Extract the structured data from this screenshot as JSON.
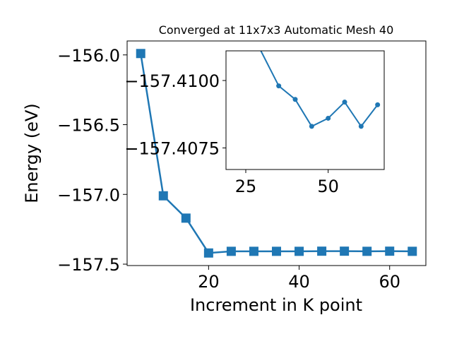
{
  "chart_data": [
    {
      "type": "line",
      "title": "Converged at 11x7x3 Automatic Mesh 40",
      "xlabel": "Increment in K point",
      "ylabel": "Energy (eV)",
      "xlim": [
        2,
        68
      ],
      "ylim": [
        -157.51,
        -155.9
      ],
      "x_ticks": [
        20,
        40,
        60
      ],
      "y_ticks": [
        -156.0,
        -156.5,
        -157.0,
        -157.5
      ],
      "x_tick_labels": [
        "20",
        "40",
        "60"
      ],
      "y_tick_labels": [
        "−156.0",
        "−156.5",
        "−157.0",
        "−157.5"
      ],
      "marker": "square",
      "color": "#1f77b4",
      "series": [
        {
          "x": [
            5,
            10,
            15,
            20,
            25,
            30,
            35,
            40,
            45,
            50,
            55,
            60,
            65
          ],
          "y": [
            -155.99,
            -157.01,
            -157.17,
            -157.42,
            -157.408,
            -157.408,
            -157.408,
            -157.408,
            -157.407,
            -157.407,
            -157.408,
            -157.407,
            -157.408
          ]
        }
      ]
    },
    {
      "type": "line",
      "inset": true,
      "xlim": [
        19,
        67
      ],
      "ylim": [
        -157.4067,
        -157.4111
      ],
      "x_ticks": [
        25,
        50
      ],
      "y_ticks": [
        -157.41,
        -157.4075
      ],
      "x_tick_labels": [
        "25",
        "50"
      ],
      "y_tick_labels": [
        "−157.4100",
        "−157.4075"
      ],
      "marker": "circle",
      "color": "#1f77b4",
      "series": [
        {
          "x": [
            25,
            35,
            40,
            45,
            50,
            55,
            60,
            65
          ],
          "y": [
            -157.4122,
            -157.4098,
            -157.4093,
            -157.4083,
            -157.4086,
            -157.4092,
            -157.4083,
            -157.4091
          ]
        }
      ]
    }
  ]
}
